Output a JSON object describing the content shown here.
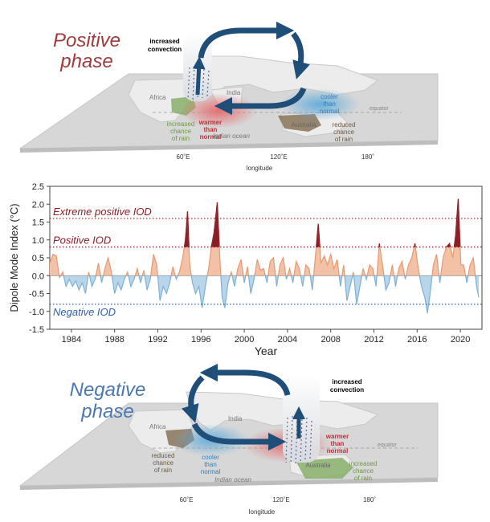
{
  "positive_panel": {
    "title_line1": "Positive",
    "title_line2": "phase",
    "convection": [
      "increased",
      "convection"
    ],
    "africa": "Africa",
    "india": "India",
    "australia": "Australia",
    "equator": "equator",
    "indian_ocean": "Indian ocean",
    "green_label": [
      "increased",
      "chance",
      "of rain"
    ],
    "warm_label": [
      "warmer",
      "than",
      "normal"
    ],
    "cool_label": [
      "cooler",
      "than",
      "normal"
    ],
    "brown_label": [
      "reduced",
      "chance",
      "of rain"
    ],
    "lon_ticks": [
      "60˚E",
      "120˚E",
      "180˚"
    ],
    "lon_title": "longitude"
  },
  "negative_panel": {
    "title_line1": "Negative",
    "title_line2": "phase",
    "convection": [
      "increased",
      "convection"
    ],
    "africa": "Africa",
    "india": "India",
    "australia": "Australia",
    "equator": "equator",
    "indian_ocean": "Indian ocean",
    "brown_label": [
      "reduced",
      "chance",
      "of rain"
    ],
    "cool_label": [
      "cooler",
      "than",
      "normal"
    ],
    "warm_label": [
      "warmer",
      "than",
      "normal"
    ],
    "green_label": [
      "increased",
      "chance",
      "of rain"
    ],
    "lon_ticks": [
      "60˚E",
      "120˚E",
      "180˚"
    ],
    "lon_title": "longitude"
  },
  "colors": {
    "positive_title": "#a23a3c",
    "negative_title": "#4a78b4",
    "positive_fill": "#f3c2a6",
    "extreme_fill": "#8b1d26",
    "negative_fill": "#b8d5ea",
    "positive_line": "#e59a72",
    "negative_line": "#7fb0d6",
    "threshold_pos": "#8b1d26",
    "threshold_neg": "#2f5fa8",
    "arrow": "#1f4e79",
    "warm_blob": "#e8696a",
    "cool_blob": "#5aa9dc",
    "green_region": "#8ab06a",
    "brown_region": "#8a7358"
  },
  "chart_data": {
    "type": "area",
    "title": "",
    "xlabel": "Year",
    "ylabel": "Dipole Mode Index (°C)",
    "xlim": [
      1982,
      2022
    ],
    "ylim": [
      -1.5,
      2.5
    ],
    "x_ticks": [
      1984,
      1988,
      1992,
      1996,
      2000,
      2004,
      2008,
      2012,
      2016,
      2020
    ],
    "y_ticks": [
      "2.5",
      "2.0",
      "1.5",
      "1.0",
      "0.5",
      "0.0",
      "-0.5",
      "-1.0",
      "-1.5"
    ],
    "grid": false,
    "thresholds": [
      {
        "label": "Extreme positive IOD",
        "value": 1.6,
        "style": "dotted"
      },
      {
        "label": "Positive IOD",
        "value": 0.8,
        "style": "dotted"
      },
      {
        "label": "Negative IOD",
        "value": -0.8,
        "style": "dotted"
      }
    ],
    "series": [
      {
        "x": [
          1982.0,
          1982.3,
          1982.6,
          1982.9,
          1983.2,
          1983.5,
          1983.8,
          1984.1,
          1984.4,
          1984.7,
          1985.0,
          1985.3,
          1985.6,
          1985.9,
          1986.2,
          1986.5,
          1986.8,
          1987.1,
          1987.4,
          1987.7,
          1988.0,
          1988.3,
          1988.6,
          1988.9,
          1989.2,
          1989.5,
          1989.8,
          1990.1,
          1990.4,
          1990.7,
          1991.0,
          1991.3,
          1991.6,
          1991.9,
          1992.2,
          1992.5,
          1992.8,
          1993.1,
          1993.4,
          1993.7,
          1994.0,
          1994.3,
          1994.55,
          1994.75,
          1994.95,
          1995.2,
          1995.5,
          1995.8,
          1996.1,
          1996.4,
          1996.7,
          1996.95,
          1997.2,
          1997.5,
          1997.75,
          1997.95,
          1998.2,
          1998.5,
          1998.8,
          1999.1,
          1999.4,
          1999.7,
          2000.0,
          2000.3,
          2000.6,
          2000.9,
          2001.2,
          2001.5,
          2001.8,
          2002.1,
          2002.4,
          2002.7,
          2003.0,
          2003.3,
          2003.6,
          2003.9,
          2004.2,
          2004.5,
          2004.8,
          2005.1,
          2005.4,
          2005.7,
          2006.0,
          2006.3,
          2006.6,
          2006.85,
          2007.1,
          2007.4,
          2007.7,
          2008.0,
          2008.3,
          2008.6,
          2008.9,
          2009.2,
          2009.5,
          2009.8,
          2010.1,
          2010.4,
          2010.7,
          2011.0,
          2011.3,
          2011.6,
          2011.9,
          2012.2,
          2012.5,
          2012.8,
          2013.1,
          2013.4,
          2013.7,
          2014.0,
          2014.3,
          2014.6,
          2014.9,
          2015.2,
          2015.5,
          2015.8,
          2016.1,
          2016.4,
          2016.7,
          2016.95,
          2017.2,
          2017.5,
          2017.8,
          2018.1,
          2018.4,
          2018.7,
          2019.0,
          2019.3,
          2019.55,
          2019.8,
          2020.05,
          2020.3,
          2020.6,
          2020.9,
          2021.2,
          2021.5,
          2021.7
        ],
        "y": [
          0.35,
          0.6,
          0.55,
          -0.05,
          0.1,
          -0.3,
          -0.1,
          -0.3,
          -0.15,
          -0.4,
          -0.2,
          -0.5,
          0.1,
          -0.3,
          -0.1,
          0.35,
          -0.2,
          0.2,
          0.5,
          0.1,
          -0.5,
          -0.2,
          -0.4,
          -0.1,
          0.1,
          -0.3,
          -0.1,
          0.2,
          -0.2,
          0.15,
          -0.4,
          -0.1,
          0.6,
          0.3,
          -0.7,
          -0.3,
          -0.5,
          -0.2,
          0.25,
          -0.1,
          0.1,
          0.5,
          1.0,
          1.8,
          0.3,
          -0.2,
          -0.5,
          -0.3,
          -0.9,
          -0.3,
          0.2,
          0.8,
          1.2,
          2.05,
          0.4,
          -0.6,
          -0.9,
          -0.2,
          0.1,
          -0.3,
          0.2,
          0.45,
          -0.2,
          0.25,
          -0.5,
          -0.1,
          0.45,
          0.15,
          0.2,
          -0.2,
          0.4,
          0.5,
          -0.3,
          0.3,
          0.5,
          -0.1,
          0.2,
          -0.2,
          0.4,
          0.2,
          -0.3,
          0.3,
          0.2,
          -0.4,
          0.6,
          1.45,
          0.35,
          0.55,
          0.3,
          0.6,
          0.2,
          0.45,
          -0.3,
          0.3,
          -0.7,
          -0.3,
          0.1,
          -0.8,
          -0.3,
          0.2,
          -0.1,
          0.3,
          0.2,
          -0.3,
          0.9,
          0.3,
          -0.4,
          -0.2,
          0.3,
          -0.3,
          0.2,
          0.4,
          -0.1,
          0.3,
          0.5,
          0.9,
          0.2,
          -0.3,
          -0.6,
          -1.05,
          -0.5,
          0.3,
          0.6,
          -0.2,
          0.5,
          0.8,
          0.9,
          0.5,
          1.1,
          2.15,
          0.3,
          0.3,
          -0.2,
          0.3,
          0.5,
          -0.3,
          -0.6
        ]
      }
    ]
  }
}
